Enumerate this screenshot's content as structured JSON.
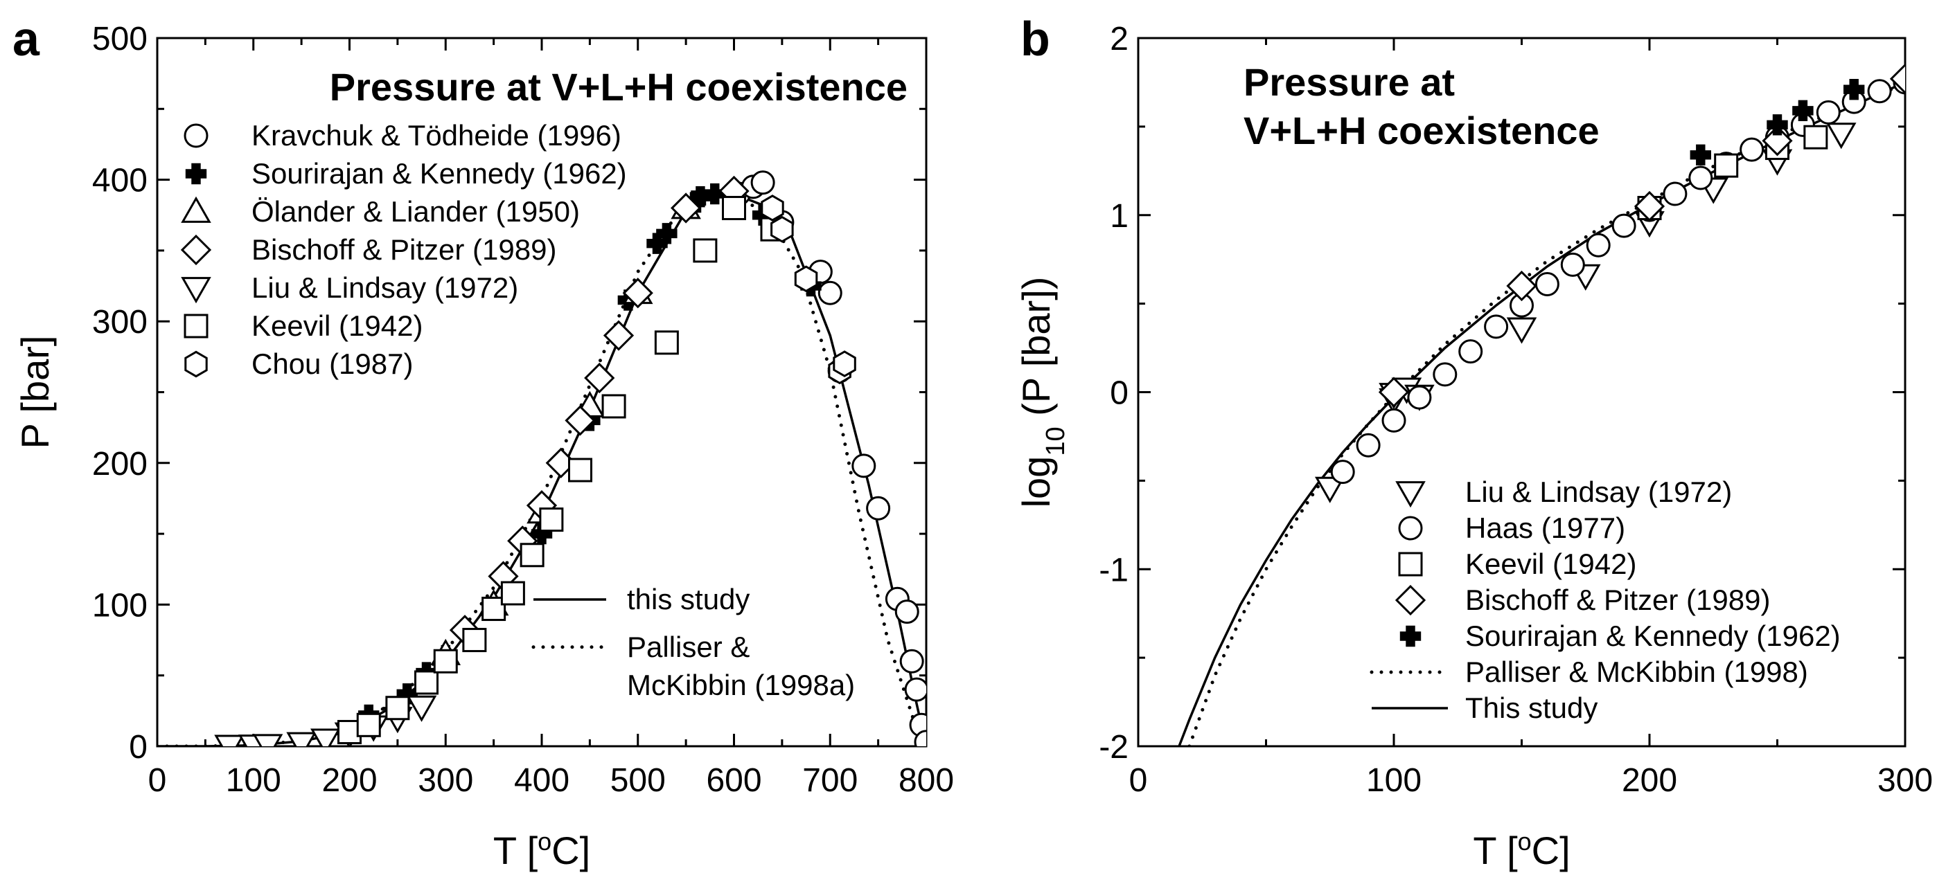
{
  "colors": {
    "ink": "#000000",
    "background": "#ffffff",
    "marker_fill": "#ffffff"
  },
  "chart_data": [
    {
      "panel": "a",
      "type": "scatter",
      "title": "Pressure at V+L+H coexistence",
      "xlabel": "T [oC]",
      "ylabel": "P [bar]",
      "xlim": [
        0,
        800
      ],
      "ylim": [
        0,
        500
      ],
      "xticks": [
        0,
        100,
        200,
        300,
        400,
        500,
        600,
        700,
        800
      ],
      "yticks": [
        0,
        100,
        200,
        300,
        400,
        500
      ],
      "grid": false,
      "legend_location": "upper-left",
      "legend2_location": "lower-right",
      "series": [
        {
          "name": "Kravchuk & Tödheide (1996)",
          "marker": "circle",
          "x": [
            605,
            620,
            630,
            650,
            690,
            700,
            710,
            735,
            750,
            770,
            780,
            785,
            790,
            795,
            800
          ],
          "y": [
            390,
            395,
            398,
            370,
            335,
            320,
            265,
            198,
            168,
            104,
            95,
            60,
            40,
            15,
            3
          ]
        },
        {
          "name": "Sourirajan & Kennedy (1962)",
          "marker": "plus",
          "x": [
            220,
            260,
            280,
            300,
            400,
            450,
            490,
            520,
            530,
            555,
            560,
            565,
            580,
            630,
            680
          ],
          "y": [
            22,
            37,
            52,
            64,
            150,
            230,
            315,
            355,
            362,
            380,
            385,
            388,
            390,
            375,
            325
          ]
        },
        {
          "name": "Ölander & Liander (1950)",
          "marker": "triangle-up",
          "x": [
            300,
            350,
            400,
            450,
            500,
            550
          ],
          "y": [
            65,
            100,
            165,
            240,
            320,
            380
          ]
        },
        {
          "name": "Bischoff & Pitzer (1989)",
          "marker": "diamond",
          "x": [
            320,
            360,
            380,
            400,
            420,
            440,
            460,
            480,
            500,
            550,
            600
          ],
          "y": [
            82,
            120,
            145,
            170,
            200,
            230,
            260,
            290,
            320,
            380,
            392
          ]
        },
        {
          "name": "Liu & Lindsay (1972)",
          "marker": "triangle-down",
          "x": [
            75,
            100,
            115,
            150,
            175,
            200,
            225,
            250,
            275
          ],
          "y": [
            0.29,
            0.49,
            0.86,
            2.2,
            4.7,
            9,
            14,
            20,
            28
          ]
        },
        {
          "name": "Keevil (1942)",
          "marker": "square",
          "x": [
            200,
            220,
            250,
            280,
            300,
            330,
            350,
            370,
            390,
            410,
            440,
            475,
            530,
            570,
            600,
            640
          ],
          "y": [
            10,
            15,
            27,
            45,
            60,
            75,
            97,
            108,
            135,
            160,
            195,
            240,
            285,
            350,
            380,
            365
          ]
        },
        {
          "name": "Chou (1987)",
          "marker": "hexagon",
          "x": [
            640,
            650,
            675,
            710,
            715
          ],
          "y": [
            380,
            365,
            330,
            265,
            270
          ]
        }
      ],
      "lines": [
        {
          "name": "this study",
          "style": "solid",
          "x": [
            0,
            50,
            100,
            150,
            200,
            250,
            300,
            350,
            400,
            450,
            500,
            550,
            580,
            600,
            630,
            660,
            700,
            740,
            770,
            790,
            800
          ],
          "y": [
            0,
            0.02,
            0.65,
            3.5,
            10.4,
            30,
            60,
            105,
            163,
            238,
            320,
            378,
            390,
            390,
            382,
            360,
            290,
            185,
            95,
            30,
            0
          ]
        },
        {
          "name": "Palliser & McKibbin (1998a)",
          "style": "dotted",
          "x": [
            0,
            50,
            100,
            150,
            200,
            250,
            300,
            350,
            400,
            450,
            500,
            550,
            580,
            610,
            640,
            670,
            700,
            730,
            760,
            790,
            800
          ],
          "y": [
            0,
            0.02,
            0.85,
            3.8,
            11.5,
            33,
            67,
            112,
            175,
            255,
            335,
            385,
            390,
            387,
            370,
            335,
            265,
            165,
            75,
            12,
            0
          ]
        }
      ],
      "legend": [
        {
          "label": "Kravchuk & Tödheide (1996)",
          "marker": "circle"
        },
        {
          "label": "Sourirajan & Kennedy (1962)",
          "marker": "plus"
        },
        {
          "label": "Ölander & Liander (1950)",
          "marker": "triangle-up"
        },
        {
          "label": "Bischoff & Pitzer (1989)",
          "marker": "diamond"
        },
        {
          "label": "Liu & Lindsay (1972)",
          "marker": "triangle-down"
        },
        {
          "label": "Keevil (1942)",
          "marker": "square"
        },
        {
          "label": "Chou (1987)",
          "marker": "hexagon"
        }
      ],
      "legend2": [
        {
          "label": "this study",
          "style": "solid"
        },
        {
          "label": "Palliser &",
          "label2": "McKibbin (1998a)",
          "style": "dotted"
        }
      ]
    },
    {
      "panel": "b",
      "type": "scatter",
      "title": [
        "Pressure at",
        "V+L+H coexistence"
      ],
      "xlabel": "T [oC]",
      "ylabel": "log10 (P [bar])",
      "xlim": [
        0,
        300
      ],
      "ylim": [
        -2,
        2
      ],
      "xticks": [
        0,
        100,
        200,
        300
      ],
      "yticks": [
        -2,
        -1,
        0,
        1,
        2
      ],
      "grid": false,
      "legend_location": "lower-right",
      "series": [
        {
          "name": "Liu & Lindsay (1972)",
          "marker": "triangle-down",
          "x": [
            75,
            100,
            100,
            105,
            110,
            150,
            175,
            200,
            225,
            250,
            275
          ],
          "y": [
            -0.54,
            -0.04,
            -0.01,
            0.02,
            -0.02,
            0.36,
            0.66,
            0.96,
            1.15,
            1.31,
            1.46
          ]
        },
        {
          "name": "Haas (1977)",
          "marker": "circle",
          "x": [
            80,
            90,
            100,
            110,
            120,
            130,
            140,
            150,
            160,
            170,
            180,
            190,
            200,
            210,
            220,
            230,
            240,
            250,
            260,
            270,
            280,
            290,
            300
          ],
          "y": [
            -0.45,
            -0.3,
            -0.16,
            -0.03,
            0.1,
            0.23,
            0.37,
            0.49,
            0.61,
            0.72,
            0.83,
            0.94,
            1.03,
            1.12,
            1.21,
            1.29,
            1.37,
            1.44,
            1.51,
            1.58,
            1.64,
            1.7,
            1.75
          ]
        },
        {
          "name": "Keevil (1942)",
          "marker": "square",
          "x": [
            200,
            230,
            250,
            265
          ],
          "y": [
            1.04,
            1.28,
            1.38,
            1.44
          ]
        },
        {
          "name": "Bischoff & Pitzer (1989)",
          "marker": "diamond",
          "x": [
            100,
            150,
            200,
            250,
            300
          ],
          "y": [
            0.0,
            0.6,
            1.05,
            1.42,
            1.77
          ]
        },
        {
          "name": "Sourirajan & Kennedy (1962)",
          "marker": "plus",
          "x": [
            220,
            250,
            260,
            280
          ],
          "y": [
            1.34,
            1.51,
            1.59,
            1.71
          ]
        }
      ],
      "lines": [
        {
          "name": "Palliser & McKibbin (1998)",
          "style": "dotted",
          "x": [
            20,
            30,
            40,
            50,
            60,
            70,
            80,
            90,
            100,
            120,
            140,
            160,
            180,
            200,
            220,
            240,
            260,
            280,
            300
          ],
          "y": [
            -2.0,
            -1.6,
            -1.28,
            -1.0,
            -0.76,
            -0.54,
            -0.35,
            -0.18,
            -0.02,
            0.27,
            0.52,
            0.74,
            0.92,
            1.08,
            1.24,
            1.38,
            1.51,
            1.63,
            1.74
          ]
        },
        {
          "name": "This study",
          "style": "solid",
          "x": [
            16,
            20,
            30,
            40,
            50,
            60,
            70,
            80,
            90,
            100,
            120,
            140,
            160,
            180,
            200,
            220,
            240,
            260,
            280,
            300
          ],
          "y": [
            -2.0,
            -1.85,
            -1.5,
            -1.2,
            -0.95,
            -0.72,
            -0.52,
            -0.34,
            -0.18,
            -0.03,
            0.25,
            0.49,
            0.71,
            0.9,
            1.06,
            1.21,
            1.35,
            1.49,
            1.62,
            1.75
          ]
        }
      ],
      "legend": [
        {
          "label": "Liu & Lindsay (1972)",
          "marker": "triangle-down"
        },
        {
          "label": "Haas (1977)",
          "marker": "circle"
        },
        {
          "label": "Keevil (1942)",
          "marker": "square"
        },
        {
          "label": "Bischoff & Pitzer (1989)",
          "marker": "diamond"
        },
        {
          "label": "Sourirajan & Kennedy (1962)",
          "marker": "plus"
        },
        {
          "label": "Palliser & McKibbin (1998)",
          "style": "dotted"
        },
        {
          "label": "This study",
          "style": "solid"
        }
      ]
    }
  ]
}
